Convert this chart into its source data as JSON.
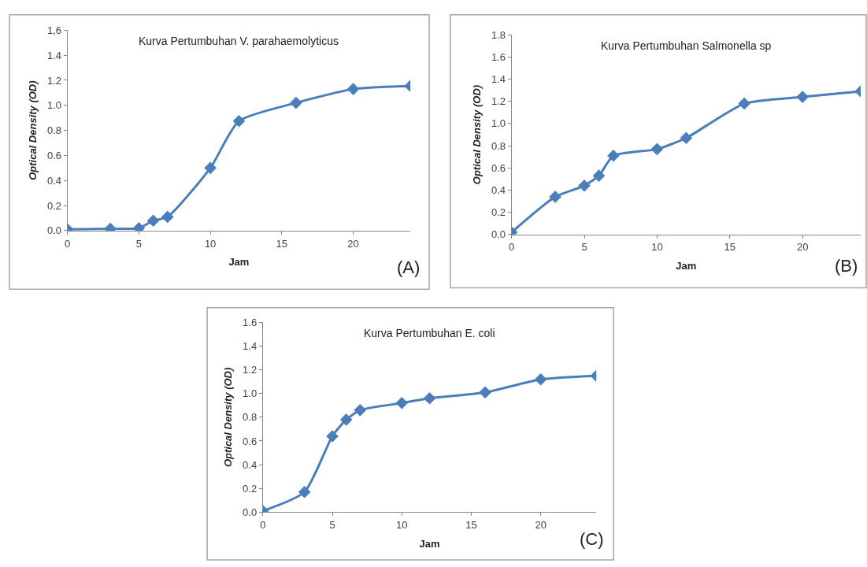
{
  "chart_data": [
    {
      "type": "line",
      "title": "Kurva Pertumbuhan V. parahaemolyticus",
      "xlabel": "Jam",
      "ylabel": "Optical Density (OD)",
      "annotations": [
        "(A)"
      ],
      "x": [
        0,
        3,
        5,
        6,
        7,
        10,
        12,
        16,
        20,
        24
      ],
      "series": [
        {
          "color": "#4a7ebb",
          "values": [
            0.01,
            0.015,
            0.02,
            0.08,
            0.11,
            0.5,
            0.875,
            1.02,
            1.13,
            1.155
          ]
        }
      ],
      "xlim": [
        0,
        24
      ],
      "xticks": [
        0,
        5,
        10,
        15,
        20
      ],
      "ylim": [
        0,
        1.6
      ],
      "yticks": [
        {
          "value": 0,
          "label": "0.0"
        },
        {
          "value": 0.2,
          "label": "0.2"
        },
        {
          "value": 0.4,
          "label": "0.4"
        },
        {
          "value": 0.6,
          "label": "0.6"
        },
        {
          "value": 0.8,
          "label": "0.8"
        },
        {
          "value": 1,
          "label": "1.0"
        },
        {
          "value": 1.2,
          "label": "1.2"
        },
        {
          "value": 1.4,
          "label": "1.4"
        },
        {
          "value": 1.6,
          "label": "1,6"
        }
      ],
      "marker": "diamond",
      "line_style": "solid"
    },
    {
      "type": "line",
      "title": "Kurva Pertumbuhan Salmonella sp",
      "xlabel": "Jam",
      "ylabel": "Optical Density (OD)",
      "annotations": [
        "(B)"
      ],
      "x": [
        0,
        3,
        5,
        6,
        7,
        10,
        12,
        16,
        20,
        24
      ],
      "series": [
        {
          "color": "#4a7ebb",
          "values": [
            0.02,
            0.34,
            0.44,
            0.53,
            0.71,
            0.77,
            0.87,
            1.18,
            1.24,
            1.29
          ]
        }
      ],
      "xlim": [
        0,
        24
      ],
      "xticks": [
        0,
        5,
        10,
        15,
        20
      ],
      "ylim": [
        0,
        1.8
      ],
      "yticks": [
        {
          "value": 0,
          "label": "0.0"
        },
        {
          "value": 0.2,
          "label": "0.2"
        },
        {
          "value": 0.4,
          "label": "0.4"
        },
        {
          "value": 0.6,
          "label": "0.6"
        },
        {
          "value": 0.8,
          "label": "0.8"
        },
        {
          "value": 1,
          "label": "1.0"
        },
        {
          "value": 1.2,
          "label": "1.2"
        },
        {
          "value": 1.4,
          "label": "1.4"
        },
        {
          "value": 1.6,
          "label": "1.6"
        },
        {
          "value": 1.8,
          "label": "1.8"
        }
      ],
      "marker": "diamond",
      "line_style": "solid"
    },
    {
      "type": "line",
      "title": "Kurva Pertumbuhan E. coli",
      "xlabel": "Jam",
      "ylabel": "Optical Density (OD)",
      "annotations": [
        "(C)"
      ],
      "x": [
        0,
        3,
        5,
        6,
        7,
        10,
        12,
        16,
        20,
        24
      ],
      "series": [
        {
          "color": "#4a7ebb",
          "values": [
            0.01,
            0.17,
            0.64,
            0.78,
            0.86,
            0.92,
            0.96,
            1.01,
            1.12,
            1.15
          ]
        }
      ],
      "xlim": [
        0,
        24
      ],
      "xticks": [
        0,
        5,
        10,
        15,
        20
      ],
      "ylim": [
        0,
        1.6
      ],
      "yticks": [
        {
          "value": 0,
          "label": "0.0"
        },
        {
          "value": 0.2,
          "label": "0.2"
        },
        {
          "value": 0.4,
          "label": "0.4"
        },
        {
          "value": 0.6,
          "label": "0.6"
        },
        {
          "value": 0.8,
          "label": "0.8"
        },
        {
          "value": 1,
          "label": "1.0"
        },
        {
          "value": 1.2,
          "label": "1.2"
        },
        {
          "value": 1.4,
          "label": "1.4"
        },
        {
          "value": 1.6,
          "label": "1.6"
        }
      ],
      "marker": "diamond",
      "line_style": "solid"
    }
  ]
}
